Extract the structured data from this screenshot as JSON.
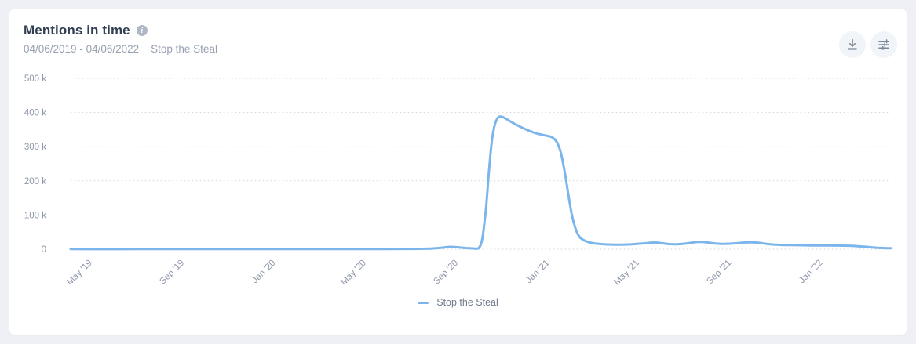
{
  "header": {
    "title": "Mentions in time",
    "date_range": "04/06/2019 - 04/06/2022",
    "query": "Stop the Steal",
    "info_icon_glyph": "i"
  },
  "legend": {
    "label": "Stop the Steal",
    "marker_color": "#7cb5ec"
  },
  "colors": {
    "line": "#7cb5ec",
    "gridline": "#d4d7de",
    "axis_label": "#8e96aa",
    "title": "#323e52",
    "subtitle": "#98a1b0",
    "icon": "#7d8795",
    "page_bg": "#eef0f5",
    "card_bg": "#ffffff"
  },
  "chart_data": {
    "type": "line",
    "title": "Mentions in time",
    "xlabel": "",
    "ylabel": "",
    "x_range": [
      "2019-04-06",
      "2022-04-06"
    ],
    "ylim": [
      0,
      500000
    ],
    "grid": "horizontal-dotted",
    "legend_position": "bottom-center",
    "yticks": [
      {
        "value": 0,
        "label": "0"
      },
      {
        "value": 100000,
        "label": "100 k"
      },
      {
        "value": 200000,
        "label": "200 k"
      },
      {
        "value": 300000,
        "label": "300 k"
      },
      {
        "value": 400000,
        "label": "400 k"
      },
      {
        "value": 500000,
        "label": "500 k"
      }
    ],
    "xticks": [
      {
        "date": "2019-05-01",
        "label": "May '19"
      },
      {
        "date": "2019-09-01",
        "label": "Sep '19"
      },
      {
        "date": "2020-01-01",
        "label": "Jan '20"
      },
      {
        "date": "2020-05-01",
        "label": "May '20"
      },
      {
        "date": "2020-09-01",
        "label": "Sep '20"
      },
      {
        "date": "2021-01-01",
        "label": "Jan '21"
      },
      {
        "date": "2021-05-01",
        "label": "May '21"
      },
      {
        "date": "2021-09-01",
        "label": "Sep '21"
      },
      {
        "date": "2022-01-01",
        "label": "Jan '22"
      }
    ],
    "series": [
      {
        "name": "Stop the Steal",
        "color": "#7cb5ec",
        "points": [
          [
            "2019-04-06",
            400
          ],
          [
            "2019-05-15",
            300
          ],
          [
            "2019-07-01",
            450
          ],
          [
            "2019-08-15",
            350
          ],
          [
            "2019-10-01",
            450
          ],
          [
            "2019-11-15",
            350
          ],
          [
            "2020-01-01",
            450
          ],
          [
            "2020-02-15",
            400
          ],
          [
            "2020-04-01",
            500
          ],
          [
            "2020-05-15",
            600
          ],
          [
            "2020-07-01",
            900
          ],
          [
            "2020-08-01",
            2000
          ],
          [
            "2020-08-15",
            4500
          ],
          [
            "2020-08-25",
            6800
          ],
          [
            "2020-09-05",
            5500
          ],
          [
            "2020-09-15",
            3500
          ],
          [
            "2020-09-25",
            2200
          ],
          [
            "2020-10-02",
            3000
          ],
          [
            "2020-10-07",
            30000
          ],
          [
            "2020-10-12",
            120000
          ],
          [
            "2020-10-16",
            230000
          ],
          [
            "2020-10-20",
            320000
          ],
          [
            "2020-10-24",
            366000
          ],
          [
            "2020-10-28",
            385000
          ],
          [
            "2020-11-01",
            388000
          ],
          [
            "2020-11-06",
            384000
          ],
          [
            "2020-11-12",
            376000
          ],
          [
            "2020-11-20",
            366000
          ],
          [
            "2020-11-28",
            357000
          ],
          [
            "2020-12-06",
            349000
          ],
          [
            "2020-12-14",
            342000
          ],
          [
            "2020-12-22",
            337000
          ],
          [
            "2020-12-30",
            333000
          ],
          [
            "2021-01-05",
            330000
          ],
          [
            "2021-01-10",
            325000
          ],
          [
            "2021-01-15",
            312000
          ],
          [
            "2021-01-20",
            283000
          ],
          [
            "2021-01-25",
            228000
          ],
          [
            "2021-01-30",
            160000
          ],
          [
            "2021-02-04",
            98000
          ],
          [
            "2021-02-09",
            58000
          ],
          [
            "2021-02-14",
            36000
          ],
          [
            "2021-02-20",
            26000
          ],
          [
            "2021-02-27",
            20000
          ],
          [
            "2021-03-06",
            17000
          ],
          [
            "2021-03-15",
            15000
          ],
          [
            "2021-03-25",
            13800
          ],
          [
            "2021-04-05",
            13200
          ],
          [
            "2021-04-15",
            13500
          ],
          [
            "2021-04-25",
            14500
          ],
          [
            "2021-05-05",
            16000
          ],
          [
            "2021-05-15",
            18000
          ],
          [
            "2021-05-25",
            19500
          ],
          [
            "2021-06-04",
            17500
          ],
          [
            "2021-06-14",
            15000
          ],
          [
            "2021-06-24",
            14500
          ],
          [
            "2021-07-04",
            16000
          ],
          [
            "2021-07-14",
            19000
          ],
          [
            "2021-07-24",
            21500
          ],
          [
            "2021-08-03",
            20000
          ],
          [
            "2021-08-13",
            17000
          ],
          [
            "2021-08-23",
            15500
          ],
          [
            "2021-09-02",
            16000
          ],
          [
            "2021-09-12",
            17500
          ],
          [
            "2021-09-22",
            19500
          ],
          [
            "2021-10-02",
            20000
          ],
          [
            "2021-10-12",
            18500
          ],
          [
            "2021-10-22",
            15500
          ],
          [
            "2021-11-01",
            13500
          ],
          [
            "2021-11-11",
            12500
          ],
          [
            "2021-11-21",
            12000
          ],
          [
            "2021-12-01",
            11800
          ],
          [
            "2021-12-15",
            11200
          ],
          [
            "2021-12-29",
            10800
          ],
          [
            "2022-01-12",
            10800
          ],
          [
            "2022-01-26",
            10500
          ],
          [
            "2022-02-09",
            10000
          ],
          [
            "2022-02-19",
            9000
          ],
          [
            "2022-03-01",
            7500
          ],
          [
            "2022-03-11",
            5500
          ],
          [
            "2022-03-21",
            4000
          ],
          [
            "2022-03-31",
            3000
          ],
          [
            "2022-04-06",
            2800
          ]
        ]
      }
    ]
  }
}
